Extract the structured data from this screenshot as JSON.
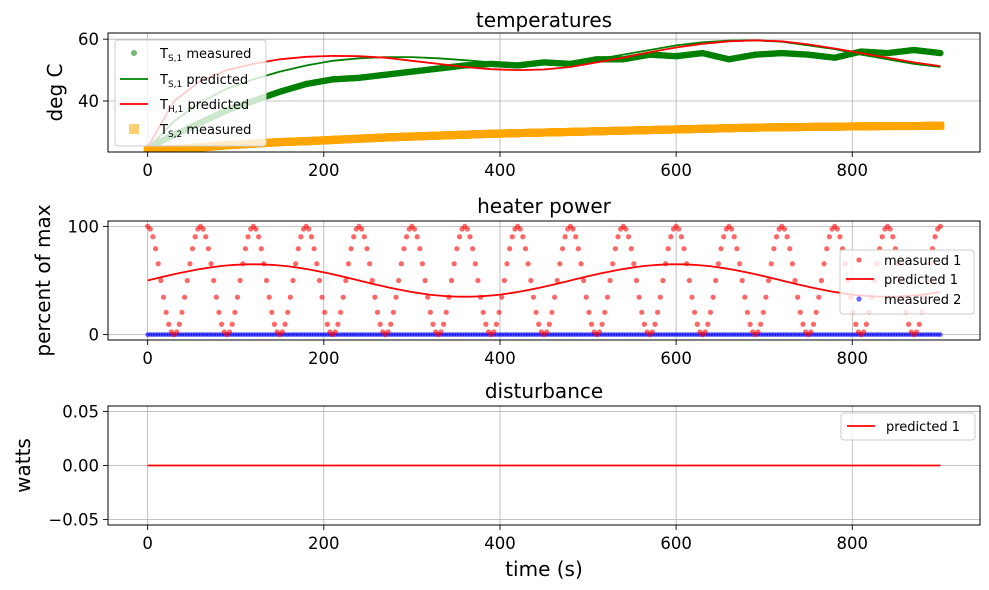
{
  "chart_data": [
    {
      "type": "line",
      "title": "temperatures",
      "xlabel": "",
      "ylabel": "deg C",
      "xlim": [
        -45,
        945
      ],
      "ylim": [
        23.5,
        62
      ],
      "xticks": [
        0,
        200,
        400,
        600,
        800
      ],
      "yticks": [
        40,
        60
      ],
      "xtick_labels": [
        "0",
        "200",
        "400",
        "600",
        "800"
      ],
      "ytick_labels": [
        "40",
        "60"
      ],
      "grid": true,
      "legend_position": "upper-left",
      "series": [
        {
          "name": "T_{S,1} measured",
          "legend_main": "T",
          "legend_sub": "S,1",
          "legend_rest": " measured",
          "style": "scatter",
          "color": "#008000",
          "x": [
            0,
            30,
            60,
            90,
            120,
            150,
            180,
            210,
            240,
            270,
            300,
            330,
            360,
            390,
            420,
            450,
            480,
            510,
            540,
            570,
            600,
            630,
            660,
            690,
            720,
            750,
            780,
            810,
            840,
            870,
            900
          ],
          "y": [
            25,
            29,
            33,
            37,
            40,
            43,
            45.5,
            47,
            47.5,
            48.5,
            49.5,
            50.5,
            51.5,
            52,
            51.5,
            52.5,
            52,
            53.5,
            53.5,
            55,
            54.5,
            55.5,
            53.5,
            55,
            55.5,
            55,
            54,
            56,
            55.5,
            56.5,
            55.5
          ]
        },
        {
          "name": "T_{S,1} predicted",
          "legend_main": "T",
          "legend_sub": "S,1",
          "legend_rest": " predicted",
          "style": "line",
          "color": "#008000",
          "x": [
            0,
            30,
            60,
            90,
            120,
            150,
            180,
            210,
            240,
            270,
            300,
            330,
            360,
            390,
            420,
            450,
            480,
            510,
            540,
            570,
            600,
            630,
            660,
            690,
            720,
            750,
            780,
            810,
            840,
            870,
            900
          ],
          "y": [
            24.5,
            33.5,
            39.5,
            44,
            47,
            49.5,
            51.5,
            53,
            53.8,
            54.2,
            54.2,
            53.8,
            53.2,
            52.5,
            52,
            52,
            52.5,
            53.5,
            55,
            56.5,
            58,
            59,
            59.5,
            59.6,
            59.2,
            58,
            56.8,
            55,
            53.5,
            52,
            51
          ]
        },
        {
          "name": "T_{H,1} predicted",
          "legend_main": "T",
          "legend_sub": "H,1",
          "legend_rest": " predicted",
          "style": "line",
          "color": "#ff0000",
          "x": [
            0,
            30,
            60,
            90,
            120,
            150,
            180,
            210,
            240,
            270,
            300,
            330,
            360,
            390,
            420,
            450,
            480,
            510,
            540,
            570,
            600,
            630,
            660,
            690,
            720,
            750,
            780,
            810,
            840,
            870,
            900
          ],
          "y": [
            25,
            40,
            46.5,
            50,
            52,
            53.5,
            54.3,
            54.6,
            54.5,
            54,
            53,
            52,
            51,
            50.3,
            50,
            50.2,
            51,
            52.5,
            54,
            55.8,
            57.3,
            58.5,
            59.3,
            59.6,
            59.3,
            58.3,
            57,
            55.5,
            54,
            52.5,
            51.3
          ]
        },
        {
          "name": "T_{S,2} measured",
          "legend_main": "T",
          "legend_sub": "S,2",
          "legend_rest": " measured",
          "style": "squares",
          "color": "#ffa500",
          "x": [
            0,
            30,
            60,
            90,
            120,
            150,
            180,
            210,
            240,
            270,
            300,
            330,
            360,
            390,
            420,
            450,
            480,
            510,
            540,
            570,
            600,
            630,
            660,
            690,
            720,
            750,
            780,
            810,
            840,
            870,
            900
          ],
          "y": [
            24,
            24.5,
            25,
            25.7,
            26.2,
            26.7,
            27,
            27.4,
            27.8,
            28.2,
            28.5,
            28.8,
            29.1,
            29.4,
            29.6,
            29.8,
            30,
            30.2,
            30.4,
            30.6,
            30.8,
            31,
            31.2,
            31.4,
            31.5,
            31.6,
            31.7,
            31.8,
            31.9,
            31.9,
            32
          ]
        }
      ]
    },
    {
      "type": "line",
      "title": "heater power",
      "xlabel": "",
      "ylabel": "percent of max",
      "xlim": [
        -45,
        945
      ],
      "ylim": [
        -5,
        105
      ],
      "xticks": [
        0,
        200,
        400,
        600,
        800
      ],
      "yticks": [
        0,
        100
      ],
      "xtick_labels": [
        "0",
        "200",
        "400",
        "600",
        "800"
      ],
      "ytick_labels": [
        "0",
        "100"
      ],
      "grid": true,
      "legend_position": "center-right",
      "measured_1_wave": {
        "offset": 50,
        "amplitude": 50,
        "period": 60,
        "x_start": 0,
        "x_end": 900,
        "sample_step": 3
      },
      "predicted_1_wave": {
        "offset": 50,
        "amplitude": 15,
        "period": 480,
        "x_start": 0,
        "x_end": 900
      },
      "series": [
        {
          "name": "measured 1",
          "style": "scatter",
          "color": "#ff0000"
        },
        {
          "name": "predicted 1",
          "style": "line",
          "color": "#ff0000"
        },
        {
          "name": "measured 2",
          "style": "scatter",
          "color": "#0000ff",
          "x_start": 0,
          "x_end": 900,
          "value": 0
        }
      ]
    },
    {
      "type": "line",
      "title": "disturbance",
      "xlabel": "time (s)",
      "ylabel": "watts",
      "xlim": [
        -45,
        945
      ],
      "ylim": [
        -0.055,
        0.055
      ],
      "xticks": [
        0,
        200,
        400,
        600,
        800
      ],
      "yticks": [
        -0.05,
        0.0,
        0.05
      ],
      "xtick_labels": [
        "0",
        "200",
        "400",
        "600",
        "800"
      ],
      "ytick_labels": [
        "−0.05",
        "0.00",
        "0.05"
      ],
      "grid": true,
      "legend_position": "upper-right",
      "series": [
        {
          "name": "predicted 1",
          "style": "line",
          "color": "#ff0000",
          "x": [
            0,
            900
          ],
          "y": [
            0,
            0
          ]
        }
      ]
    }
  ]
}
